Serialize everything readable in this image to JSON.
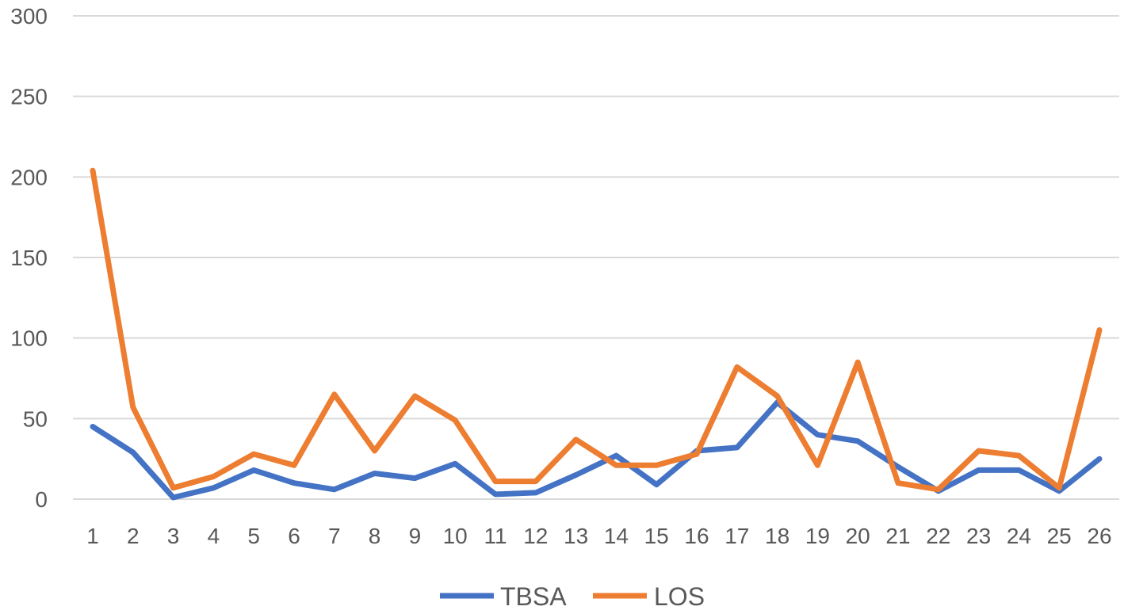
{
  "chart_data": {
    "type": "line",
    "title": "",
    "xlabel": "",
    "ylabel": "",
    "categories": [
      "1",
      "2",
      "3",
      "4",
      "5",
      "6",
      "7",
      "8",
      "9",
      "10",
      "11",
      "12",
      "13",
      "14",
      "15",
      "16",
      "17",
      "18",
      "19",
      "20",
      "21",
      "22",
      "23",
      "24",
      "25",
      "26"
    ],
    "ylim": [
      0,
      300
    ],
    "yticks": [
      "0",
      "50",
      "100",
      "150",
      "200",
      "250",
      "300"
    ],
    "grid": true,
    "legend_position": "bottom",
    "series": [
      {
        "name": "TBSA",
        "color": "#4472c4",
        "values": [
          45,
          29,
          1,
          7,
          18,
          10,
          6,
          16,
          13,
          22,
          3,
          4,
          15,
          27,
          9,
          30,
          32,
          60,
          40,
          36,
          20,
          5,
          18,
          18,
          5,
          25
        ]
      },
      {
        "name": "LOS",
        "color": "#ed7d31",
        "values": [
          204,
          57,
          7,
          14,
          28,
          21,
          65,
          30,
          64,
          49,
          11,
          11,
          37,
          21,
          21,
          28,
          82,
          64,
          21,
          85,
          10,
          6,
          30,
          27,
          7,
          105
        ]
      }
    ]
  }
}
